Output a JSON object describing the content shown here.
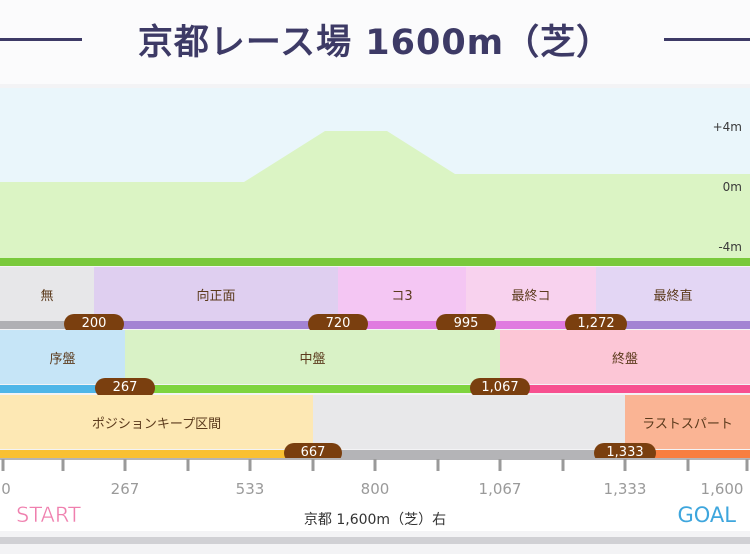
{
  "title": "京都レース場 1600m（芝）",
  "elevation": {
    "labels": [
      "+4m",
      "0m",
      "-4m"
    ],
    "colors": {
      "sky": "#eaf6fb",
      "ground": "#dbf4c4",
      "line": "#79c93b"
    }
  },
  "sections": [
    {
      "label": "無",
      "bg": "#e7e7e9",
      "bar": "#b0b0b4"
    },
    {
      "label": "向正面",
      "bg": "#dfcff0",
      "bar": "#a383d3"
    },
    {
      "label": "コ3",
      "bg": "#f4c6f3",
      "bar": "#e07be0"
    },
    {
      "label": "最終コ",
      "bg": "#f8d2ee",
      "bar": "#e07be0"
    },
    {
      "label": "最終直",
      "bg": "#e3d6f4",
      "bar": "#a383d3"
    }
  ],
  "section_markers": [
    "200",
    "720",
    "995",
    "1,272"
  ],
  "phases": [
    {
      "label": "序盤",
      "bg": "#c6e5f7",
      "bar": "#4fb6e8"
    },
    {
      "label": "中盤",
      "bg": "#d9f2c6",
      "bar": "#7fd43f"
    },
    {
      "label": "終盤",
      "bg": "#fcc6d6",
      "bar": "#f75090"
    }
  ],
  "phase_markers": [
    "267",
    "1,067"
  ],
  "spurts": [
    {
      "label": "ポジションキープ区間",
      "bg": "#fde8b4",
      "bar": "#f9c032"
    },
    {
      "label": "",
      "bg": "#e8e8ea",
      "bar": "#b4b4b7"
    },
    {
      "label": "ラストスパート",
      "bg": "#fab494",
      "bar": "#f87e40"
    }
  ],
  "spurt_markers": [
    "667",
    "1,333"
  ],
  "ticks": [
    "0",
    "267",
    "533",
    "800",
    "1,067",
    "1,333",
    "1,600"
  ],
  "start_label": "START",
  "goal_label": "GOAL",
  "course_label": "京都 1,600m（芝）右"
}
